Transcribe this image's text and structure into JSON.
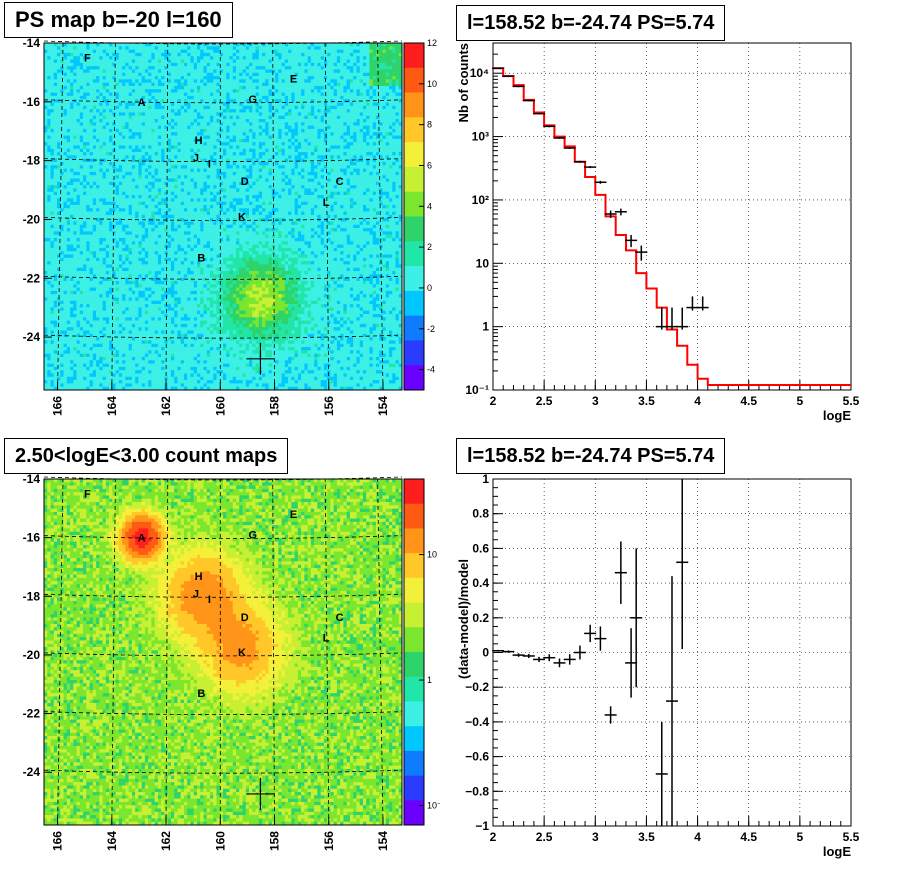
{
  "panels": {
    "ps_map": {
      "title": "PS map b=-20 l=160",
      "y_ticks": [
        "-14",
        "-16",
        "-18",
        "-20",
        "-22",
        "-24"
      ],
      "x_ticks": [
        "166",
        "164",
        "162",
        "160",
        "158",
        "156",
        "154"
      ],
      "colorbar_ticks": [
        "12",
        "10",
        "8",
        "6",
        "4",
        "2",
        "0",
        "-2",
        "-4"
      ]
    },
    "spectrum": {
      "title": "l=158.52 b=-24.74 PS=5.74"
    },
    "count_map": {
      "title": "2.50<logE<3.00 count maps",
      "y_ticks": [
        "-14",
        "-16",
        "-18",
        "-20",
        "-22",
        "-24"
      ],
      "x_ticks": [
        "166",
        "164",
        "162",
        "160",
        "158",
        "156",
        "154"
      ],
      "colorbar_ticks": [
        "10",
        "1",
        "10⁻¹"
      ]
    },
    "residual": {
      "title": "l=158.52 b=-24.74 PS=5.74"
    }
  },
  "sources": [
    {
      "name": "F",
      "l": 164.9,
      "b": -14.5
    },
    {
      "name": "E",
      "l": 157.3,
      "b": -15.2
    },
    {
      "name": "A",
      "l": 162.9,
      "b": -16.0
    },
    {
      "name": "G",
      "l": 158.8,
      "b": -15.9
    },
    {
      "name": "H",
      "l": 160.8,
      "b": -17.3
    },
    {
      "name": "J",
      "l": 160.9,
      "b": -17.9
    },
    {
      "name": "I",
      "l": 160.4,
      "b": -18.1
    },
    {
      "name": "D",
      "l": 159.1,
      "b": -18.7
    },
    {
      "name": "C",
      "l": 155.6,
      "b": -18.7
    },
    {
      "name": "L",
      "l": 156.1,
      "b": -19.4
    },
    {
      "name": "K",
      "l": 159.2,
      "b": -19.9
    },
    {
      "name": "B",
      "l": 160.7,
      "b": -21.3
    }
  ],
  "marker": {
    "l": 158.52,
    "b": -24.74
  },
  "chart_data": [
    {
      "type": "heatmap",
      "title": "PS map b=-20 l=160",
      "xlabel": "",
      "ylabel": "",
      "xlim": [
        166.5,
        153.3
      ],
      "ylim": [
        -25.8,
        -14
      ],
      "zlim": [
        -5,
        12
      ],
      "grid": true,
      "hotspots": [
        {
          "l": 158.5,
          "b": -22.7,
          "value": 5
        }
      ]
    },
    {
      "type": "line",
      "title": "l=158.52 b=-24.74 PS=5.74",
      "xlabel": "logE",
      "ylabel": "Nb of counts",
      "xlim": [
        2,
        5.5
      ],
      "ylim": [
        0.1,
        30000
      ],
      "yscale": "log",
      "x_ticks": [
        "2",
        "2.5",
        "3",
        "3.5",
        "4",
        "4.5",
        "5",
        "5.5"
      ],
      "y_ticks": [
        "10⁻¹",
        "1",
        "10",
        "10²",
        "10³",
        "10⁴"
      ],
      "grid": true,
      "series": [
        {
          "kind": "step-model",
          "color": "#ff0000",
          "x_edges": [
            2.0,
            2.1,
            2.2,
            2.3,
            2.4,
            2.5,
            2.6,
            2.7,
            2.8,
            2.9,
            3.0,
            3.1,
            3.2,
            3.3,
            3.4,
            3.5,
            3.6,
            3.7,
            3.8,
            3.9,
            4.0,
            4.1,
            4.2,
            5.5
          ],
          "values": [
            12000,
            9000,
            6500,
            3800,
            2400,
            1500,
            1000,
            700,
            400,
            230,
            120,
            55,
            28,
            16,
            7,
            4,
            2,
            0.9,
            0.5,
            0.25,
            0.15,
            0.12,
            0.12
          ]
        },
        {
          "kind": "data-points",
          "color": "#000000",
          "x": [
            2.05,
            2.15,
            2.25,
            2.35,
            2.45,
            2.55,
            2.65,
            2.75,
            2.85,
            2.95,
            3.05,
            3.15,
            3.25,
            3.35,
            3.45,
            3.65,
            3.75,
            3.85,
            3.95,
            4.05
          ],
          "y": [
            12000,
            9000,
            6200,
            3700,
            2300,
            1450,
            950,
            660,
            400,
            330,
            190,
            60,
            65,
            23,
            15,
            1,
            1,
            1,
            2,
            2
          ],
          "yerr_low": [
            11800,
            8800,
            6000,
            3600,
            2240,
            1400,
            920,
            640,
            385,
            318,
            180,
            52,
            57,
            18,
            11,
            0.9,
            0.9,
            0.9,
            1.8,
            1.8
          ],
          "yerr_high": [
            12200,
            9200,
            6400,
            3800,
            2360,
            1500,
            980,
            680,
            415,
            342,
            200,
            68,
            73,
            28,
            19,
            2,
            2,
            2,
            3,
            3
          ]
        }
      ]
    },
    {
      "type": "heatmap",
      "title": "2.50<logE<3.00 count maps",
      "xlabel": "",
      "ylabel": "",
      "xlim": [
        166.5,
        153.3
      ],
      "ylim": [
        -25.8,
        -14
      ],
      "zscale": "log",
      "zlim": [
        0.07,
        40
      ],
      "grid": true,
      "hotspots": [
        {
          "l": 162.9,
          "b": -16.0,
          "value": 30
        },
        {
          "l": 160.6,
          "b": -18.0,
          "value": 12
        },
        {
          "l": 159.2,
          "b": -19.8,
          "value": 10
        }
      ]
    },
    {
      "type": "scatter",
      "title": "l=158.52 b=-24.74 PS=5.74",
      "xlabel": "logE",
      "ylabel": "(data-model)/model",
      "xlim": [
        2,
        5.5
      ],
      "ylim": [
        -1,
        1
      ],
      "x_ticks": [
        "2",
        "2.5",
        "3",
        "3.5",
        "4",
        "4.5",
        "5",
        "5.5"
      ],
      "y_ticks": [
        "1",
        "0.8",
        "0.6",
        "0.4",
        "0.2",
        "0",
        "−0.2",
        "−0.4",
        "−0.6",
        "−0.8",
        "−1"
      ],
      "grid": true,
      "series": [
        {
          "kind": "data-points",
          "color": "#000000",
          "x": [
            2.05,
            2.15,
            2.25,
            2.35,
            2.45,
            2.55,
            2.65,
            2.75,
            2.85,
            2.95,
            3.05,
            3.15,
            3.25,
            3.35,
            3.4,
            3.65,
            3.75,
            3.85
          ],
          "y": [
            0.01,
            0.005,
            -0.015,
            -0.02,
            -0.04,
            -0.03,
            -0.06,
            -0.04,
            0.0,
            0.11,
            0.08,
            -0.36,
            0.46,
            -0.06,
            0.2,
            -0.7,
            -0.28,
            0.52
          ],
          "err": [
            0.005,
            0.007,
            0.01,
            0.012,
            0.015,
            0.02,
            0.025,
            0.03,
            0.04,
            0.05,
            0.07,
            0.05,
            0.18,
            0.2,
            0.4,
            0.3,
            0.72,
            0.5
          ]
        }
      ]
    }
  ]
}
